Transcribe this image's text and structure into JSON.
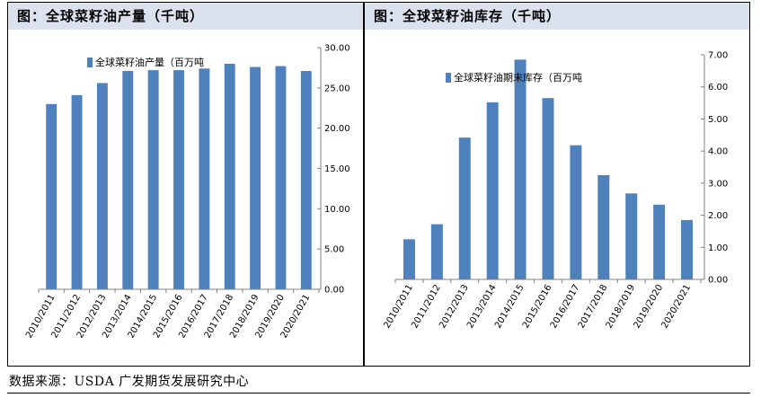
{
  "panels": {
    "left_title": "图：全球菜籽油产量（千吨）",
    "right_title": "图：全球菜籽油库存（千吨）"
  },
  "source": "数据来源：USDA 广发期货发展研究中心",
  "colors": {
    "bar": "#4f81bd",
    "axis": "#808080",
    "title_bg": "#dbe2ee"
  },
  "chart_data": [
    {
      "type": "bar",
      "categories": [
        "2010/2011",
        "2011/2012",
        "2012/2013",
        "2013/2014",
        "2014/2015",
        "2015/2016",
        "2016/2017",
        "2017/2018",
        "2018/2019",
        "2019/2020",
        "2020/2021"
      ],
      "series": [
        {
          "name": "全球菜籽油产量（百万吨",
          "values": [
            23.0,
            24.1,
            25.6,
            27.1,
            27.2,
            27.2,
            27.4,
            28.0,
            27.6,
            27.7,
            27.1
          ]
        }
      ],
      "ylim": [
        0,
        30
      ],
      "yticks": [
        "0.00",
        "5.00",
        "10.00",
        "15.00",
        "20.00",
        "25.00",
        "30.00"
      ],
      "y_axis_side": "right",
      "legend_position": "top-left",
      "grid": false
    },
    {
      "type": "bar",
      "categories": [
        "2010/2011",
        "2011/2012",
        "2012/2013",
        "2013/2014",
        "2014/2015",
        "2015/2016",
        "2016/2017",
        "2017/2018",
        "2018/2019",
        "2019/2020",
        "2020/2021"
      ],
      "series": [
        {
          "name": "全球菜籽油期末库存（百万吨",
          "values": [
            1.25,
            1.72,
            4.42,
            5.52,
            6.85,
            5.65,
            4.18,
            3.25,
            2.68,
            2.33,
            1.85
          ]
        }
      ],
      "ylim": [
        0,
        7
      ],
      "yticks": [
        "0.00",
        "1.00",
        "2.00",
        "3.00",
        "4.00",
        "5.00",
        "6.00",
        "7.00"
      ],
      "y_axis_side": "right",
      "legend_position": "top-left",
      "grid": false
    }
  ]
}
